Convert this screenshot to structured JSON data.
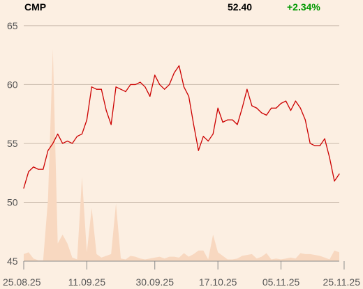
{
  "header": {
    "symbol": "CMP",
    "price": "52.40",
    "change": "+2.34%"
  },
  "colors": {
    "background": "#fcefe2",
    "line": "#cc0000",
    "volume": "#f8d8c0",
    "grid": "#c8b8aa",
    "axis": "#8a8a8a",
    "change_positive": "#009900"
  },
  "chart_data": {
    "type": "line",
    "title": "",
    "xlabel": "",
    "ylabel": "",
    "ylim": [
      45,
      66
    ],
    "y_ticks": [
      45,
      50,
      55,
      60,
      65
    ],
    "x_ticks": [
      "25.08.25",
      "11.09.25",
      "30.09.25",
      "17.10.25",
      "05.11.25",
      "25.11.25"
    ],
    "x_tick_index": [
      0,
      13,
      27,
      40,
      53,
      66
    ],
    "grid": true,
    "legend": "none",
    "series": [
      {
        "values": [
          51.2,
          52.6,
          53.0,
          52.8,
          52.8,
          54.4,
          55.0,
          55.8,
          55.0,
          55.2,
          55.0,
          55.6,
          55.8,
          57.0,
          59.8,
          59.6,
          59.6,
          57.8,
          56.6,
          59.8,
          59.6,
          59.4,
          60.0,
          60.0,
          60.2,
          59.8,
          59.0,
          60.8,
          60.0,
          59.6,
          60.0,
          61.0,
          61.6,
          59.8,
          59.0,
          56.6,
          54.4,
          55.6,
          55.2,
          55.8,
          58.0,
          56.8,
          57.0,
          57.0,
          56.6,
          58.0,
          59.6,
          58.2,
          58.0,
          57.6,
          57.4,
          58.0,
          58.0,
          58.4,
          58.6,
          57.8,
          58.6,
          58.0,
          57.0,
          55.0,
          54.8,
          54.8,
          55.4,
          53.8,
          51.8,
          52.4
        ]
      }
    ],
    "volume": [
      0.8,
      1.0,
      0.3,
      0.1,
      0.1,
      7.0,
      24.0,
      2.0,
      3.0,
      2.0,
      0.4,
      0.2,
      9.5,
      1.0,
      6.0,
      0.8,
      0.4,
      0.6,
      0.8,
      6.5,
      0.3,
      0.2,
      0.6,
      0.5,
      0.3,
      0.2,
      0.3,
      0.4,
      0.5,
      0.3,
      0.5,
      0.5,
      0.4,
      0.9,
      0.5,
      0.8,
      1.2,
      1.2,
      0.2,
      3.0,
      1.0,
      0.6,
      0.2,
      0.2,
      0.3,
      0.6,
      0.7,
      0.8,
      0.3,
      0.5,
      0.9,
      0.2,
      0.3,
      0.2,
      0.3,
      0.4,
      0.3,
      0.9,
      0.8,
      0.8,
      0.7,
      0.6,
      0.4,
      0.2,
      1.2,
      1.0
    ]
  }
}
